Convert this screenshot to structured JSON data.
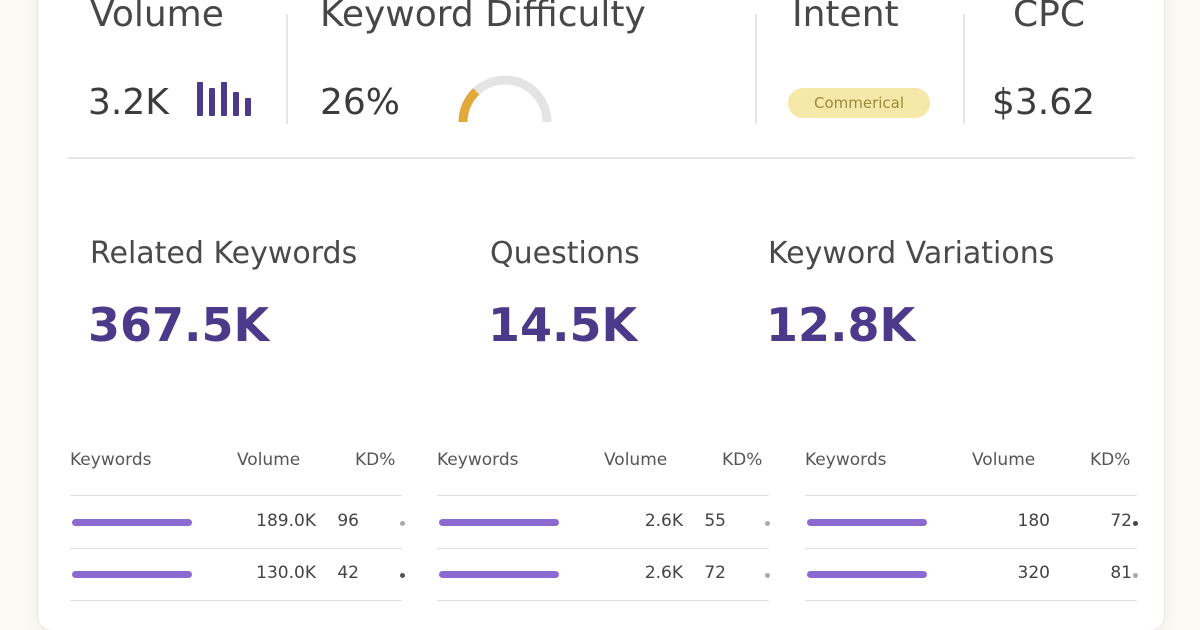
{
  "metrics": {
    "volume": {
      "label": "Volume",
      "value": "3.2K",
      "icon": "bar-chart-icon"
    },
    "difficulty": {
      "label": "Keyword Difficulty",
      "value": "26%",
      "gauge_fraction": 0.26
    },
    "intent": {
      "label": "Intent",
      "badge": "Commerical"
    },
    "cpc": {
      "label": "CPC",
      "value": "$3.62"
    }
  },
  "stats": [
    {
      "label": "Related Keywords",
      "value": "367.5K"
    },
    {
      "label": "Questions",
      "value": "14.5K"
    },
    {
      "label": "Keyword Variations",
      "value": "12.8K"
    }
  ],
  "tables": [
    {
      "headers": {
        "keywords": "Keywords",
        "volume": "Volume",
        "kd": "KD%"
      },
      "rows": [
        {
          "volume": "189.0K",
          "kd": "96"
        },
        {
          "volume": "130.0K",
          "kd": "42"
        }
      ]
    },
    {
      "headers": {
        "keywords": "Keywords",
        "volume": "Volume",
        "kd": "KD%"
      },
      "rows": [
        {
          "volume": "2.6K",
          "kd": "55"
        },
        {
          "volume": "2.6K",
          "kd": "72"
        }
      ]
    },
    {
      "headers": {
        "keywords": "Keywords",
        "volume": "Volume",
        "kd": "KD%"
      },
      "rows": [
        {
          "volume": "180",
          "kd": "72"
        },
        {
          "volume": "320",
          "kd": "81"
        }
      ]
    }
  ],
  "colors": {
    "accent": "#4b3a8a",
    "keyword_bar": "#8b6bd1",
    "gauge_fill": "#e0a93a",
    "gauge_track": "#e4e4e4",
    "badge_bg": "#f6e8a8"
  }
}
